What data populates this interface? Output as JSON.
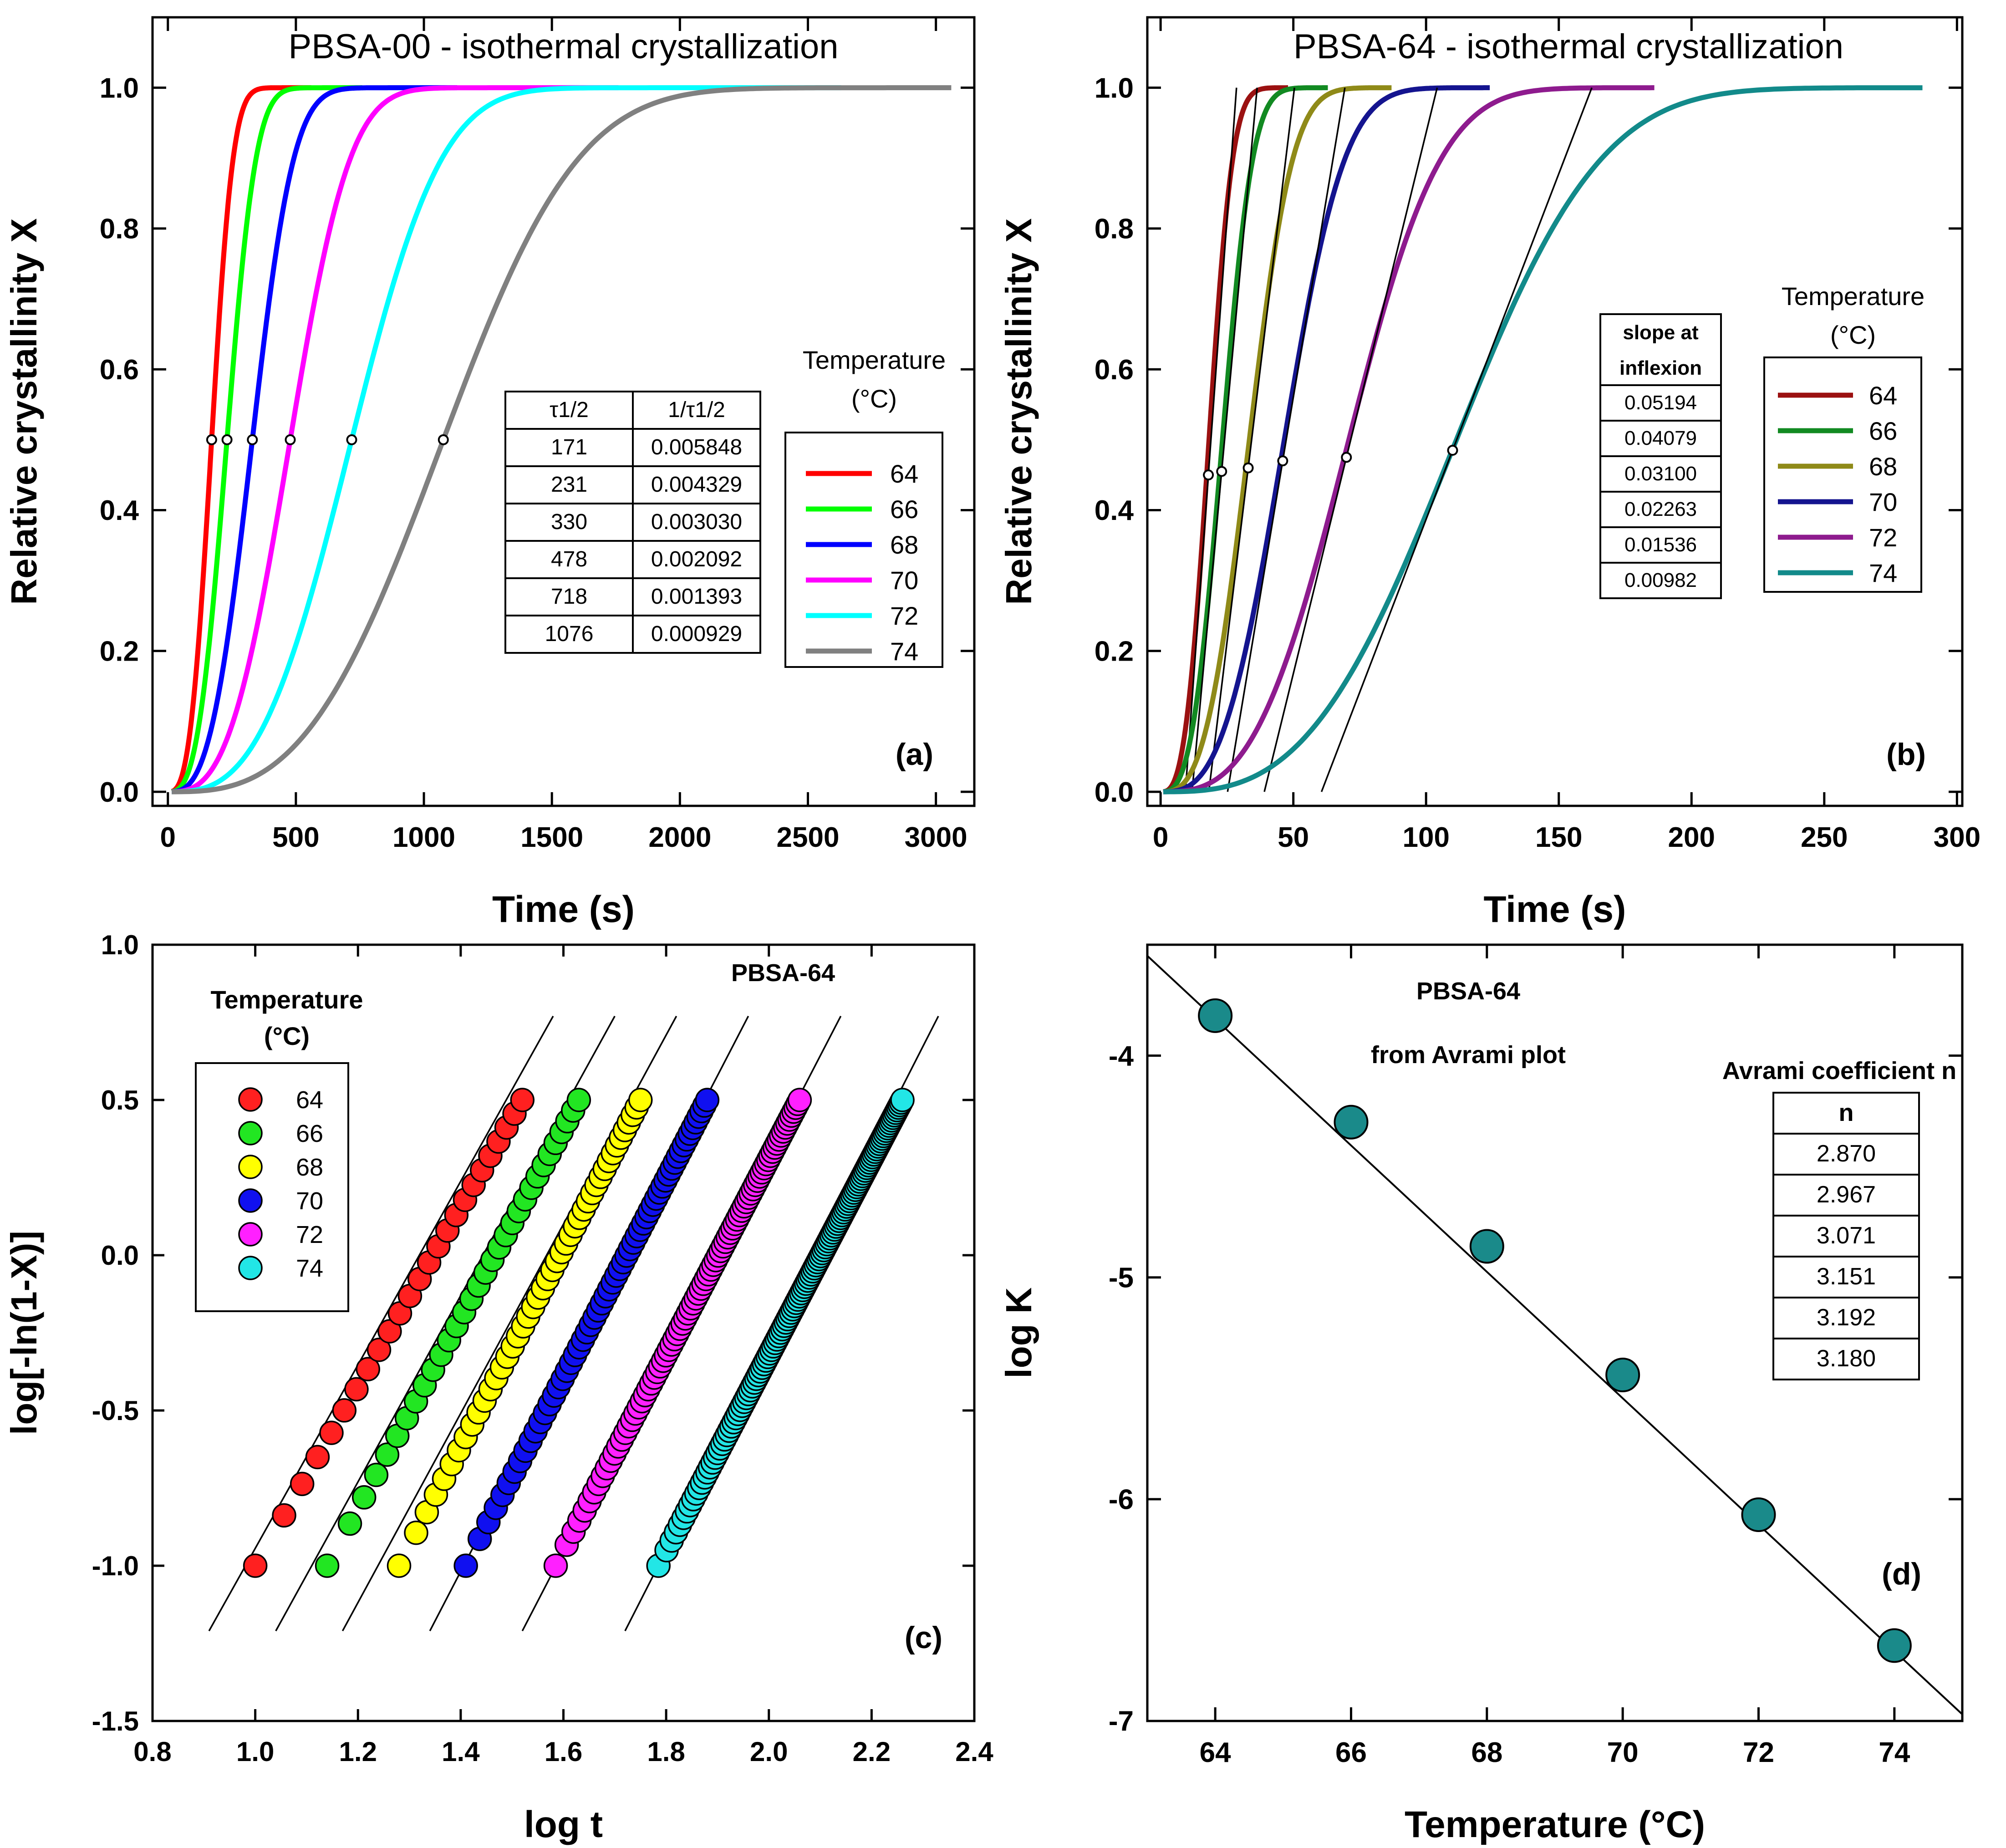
{
  "chart_data": [
    {
      "panel_id": "a",
      "panel_label": "(a)",
      "type": "line",
      "title": "PBSA-00 - isothermal crystallization",
      "xlabel": "Time (s)",
      "ylabel": "Relative crystallinity X",
      "xlim": [
        -60,
        3150
      ],
      "ylim": [
        -0.02,
        1.1
      ],
      "xticks": [
        0,
        500,
        1000,
        1500,
        2000,
        2500,
        3000
      ],
      "yticks": [
        0.0,
        0.2,
        0.4,
        0.6,
        0.8,
        1.0
      ],
      "xtick_labels": [
        "0",
        "500",
        "1000",
        "1500",
        "2000",
        "2500",
        "3000"
      ],
      "ytick_labels": [
        "0.0",
        "0.2",
        "0.4",
        "0.6",
        "0.8",
        "1.0"
      ],
      "legend": {
        "title_line1": "Temperature",
        "title_line2": "(°C)",
        "placement": "right",
        "entries": [
          "64",
          "66",
          "68",
          "70",
          "72",
          "74"
        ]
      },
      "series": [
        {
          "name": "64",
          "color": "#ff0000",
          "t_half": 171,
          "t_end": 560
        },
        {
          "name": "66",
          "color": "#00ff00",
          "t_half": 231,
          "t_end": 760
        },
        {
          "name": "68",
          "color": "#0000ff",
          "t_half": 330,
          "t_end": 1130
        },
        {
          "name": "70",
          "color": "#ff00ff",
          "t_half": 478,
          "t_end": 1760
        },
        {
          "name": "72",
          "color": "#00ffff",
          "t_half": 718,
          "t_end": 2630
        },
        {
          "name": "74",
          "color": "#808080",
          "t_half": 1076,
          "t_end": 3060
        }
      ],
      "half_markers": [
        [
          171,
          0.5
        ],
        [
          231,
          0.5
        ],
        [
          330,
          0.5
        ],
        [
          478,
          0.5
        ],
        [
          718,
          0.5
        ],
        [
          1076,
          0.5
        ]
      ],
      "table": {
        "headers": [
          "τ1/2",
          "1/τ1/2"
        ],
        "rows": [
          [
            "171",
            "0.005848"
          ],
          [
            "231",
            "0.004329"
          ],
          [
            "330",
            "0.003030"
          ],
          [
            "478",
            "0.002092"
          ],
          [
            "718",
            "0.001393"
          ],
          [
            "1076",
            "0.000929"
          ]
        ]
      }
    },
    {
      "panel_id": "b",
      "panel_label": "(b)",
      "type": "line",
      "title": "PBSA-64 - isothermal crystallization",
      "xlabel": "Time (s)",
      "ylabel": "Relative crystallinity X",
      "xlim": [
        -5,
        302
      ],
      "ylim": [
        -0.02,
        1.1
      ],
      "xticks": [
        0,
        50,
        100,
        150,
        200,
        250,
        300
      ],
      "yticks": [
        0.0,
        0.2,
        0.4,
        0.6,
        0.8,
        1.0
      ],
      "xtick_labels": [
        "0",
        "50",
        "100",
        "150",
        "200",
        "250",
        "300"
      ],
      "ytick_labels": [
        "0.0",
        "0.2",
        "0.4",
        "0.6",
        "0.8",
        "1.0"
      ],
      "legend": {
        "title_line1": "Temperature",
        "title_line2": "(°C)",
        "placement": "right",
        "entries": [
          "64",
          "66",
          "68",
          "70",
          "72",
          "74"
        ]
      },
      "series": [
        {
          "name": "64",
          "color": "#9b1111",
          "t_inflex": 18,
          "x_inflex": 0.45,
          "slope": 0.05194,
          "t_end": 48
        },
        {
          "name": "66",
          "color": "#128a22",
          "t_inflex": 23,
          "x_inflex": 0.455,
          "slope": 0.04079,
          "t_end": 63
        },
        {
          "name": "68",
          "color": "#8f8a18",
          "t_inflex": 33,
          "x_inflex": 0.46,
          "slope": 0.031,
          "t_end": 87
        },
        {
          "name": "70",
          "color": "#14148f",
          "t_inflex": 46,
          "x_inflex": 0.47,
          "slope": 0.02263,
          "t_end": 124
        },
        {
          "name": "72",
          "color": "#8e1b8e",
          "t_inflex": 70,
          "x_inflex": 0.475,
          "slope": 0.01536,
          "t_end": 186
        },
        {
          "name": "74",
          "color": "#128a8a",
          "t_inflex": 110,
          "x_inflex": 0.485,
          "slope": 0.00982,
          "t_end": 287
        }
      ],
      "table": {
        "header_line1": "slope at",
        "header_line2": "inflexion",
        "rows": [
          "0.05194",
          "0.04079",
          "0.03100",
          "0.02263",
          "0.01536",
          "0.00982"
        ]
      }
    },
    {
      "panel_id": "c",
      "panel_label": "(c)",
      "type": "scatter",
      "title": "PBSA-64",
      "xlabel": "log t",
      "ylabel": "log[-ln(1-X)]",
      "xlim": [
        0.8,
        2.4
      ],
      "ylim": [
        -1.5,
        1.0
      ],
      "xticks": [
        0.8,
        1.0,
        1.2,
        1.4,
        1.6,
        1.8,
        2.0,
        2.2,
        2.4
      ],
      "yticks": [
        -1.5,
        -1.0,
        -0.5,
        0.0,
        0.5,
        1.0
      ],
      "xtick_labels": [
        "0.8",
        "1.0",
        "1.2",
        "1.4",
        "1.6",
        "1.8",
        "2.0",
        "2.2",
        "2.4"
      ],
      "ytick_labels": [
        "-1.5",
        "-1.0",
        "-0.5",
        "0.0",
        "0.5",
        "1.0"
      ],
      "legend": {
        "title_line1": "Temperature",
        "title_line2": "(°C)",
        "placement": "top-left",
        "entries": [
          "64",
          "66",
          "68",
          "70",
          "72",
          "74"
        ]
      },
      "series": [
        {
          "name": "64",
          "color": "#ff2020",
          "x_start": 1.0,
          "x_end": 1.52,
          "points": 25
        },
        {
          "name": "66",
          "color": "#22e622",
          "x_start": 1.14,
          "x_end": 1.63,
          "points": 32
        },
        {
          "name": "68",
          "color": "#ffff00",
          "x_start": 1.28,
          "x_end": 1.75,
          "points": 45
        },
        {
          "name": "70",
          "color": "#1010f0",
          "x_start": 1.41,
          "x_end": 1.88,
          "points": 60
        },
        {
          "name": "72",
          "color": "#ff20ff",
          "x_start": 1.585,
          "x_end": 2.06,
          "points": 85
        },
        {
          "name": "74",
          "color": "#22e6e6",
          "x_start": 1.785,
          "x_end": 2.26,
          "points": 130
        }
      ],
      "y_range_of_points": [
        -1.0,
        0.5
      ],
      "fit_lines": [
        {
          "x0": 0.91,
          "y0": -1.21,
          "x1": 1.58,
          "y1": 0.77
        },
        {
          "x0": 1.04,
          "y0": -1.21,
          "x1": 1.7,
          "y1": 0.77
        },
        {
          "x0": 1.17,
          "y0": -1.21,
          "x1": 1.82,
          "y1": 0.77
        },
        {
          "x0": 1.34,
          "y0": -1.21,
          "x1": 1.96,
          "y1": 0.77
        },
        {
          "x0": 1.52,
          "y0": -1.21,
          "x1": 2.14,
          "y1": 0.77
        },
        {
          "x0": 1.72,
          "y0": -1.21,
          "x1": 2.33,
          "y1": 0.77
        }
      ]
    },
    {
      "panel_id": "d",
      "panel_label": "(d)",
      "type": "scatter",
      "title": "PBSA-64",
      "subtitle": "from Avrami plot",
      "xlabel": "Temperature (°C)",
      "ylabel": "log K",
      "xlim": [
        63,
        75
      ],
      "ylim": [
        -7,
        -3.5
      ],
      "xticks": [
        64,
        66,
        68,
        70,
        72,
        74
      ],
      "yticks": [
        -7,
        -6,
        -5,
        -4
      ],
      "xtick_labels": [
        "64",
        "66",
        "68",
        "70",
        "72",
        "74"
      ],
      "ytick_labels": [
        "-7",
        "-6",
        "-5",
        "-4"
      ],
      "x": [
        64,
        66,
        68,
        70,
        72,
        74
      ],
      "y": [
        -3.82,
        -4.3,
        -4.86,
        -5.44,
        -6.07,
        -6.66
      ],
      "marker_color": "#1a8a8a",
      "fit_line": {
        "x0": 63.0,
        "y0": -3.55,
        "x1": 75.0,
        "y1": -6.97
      },
      "table": {
        "title": "Avrami coefficient n",
        "header": "n",
        "rows": [
          "2.870",
          "2.967",
          "3.071",
          "3.151",
          "3.192",
          "3.180"
        ]
      }
    }
  ]
}
